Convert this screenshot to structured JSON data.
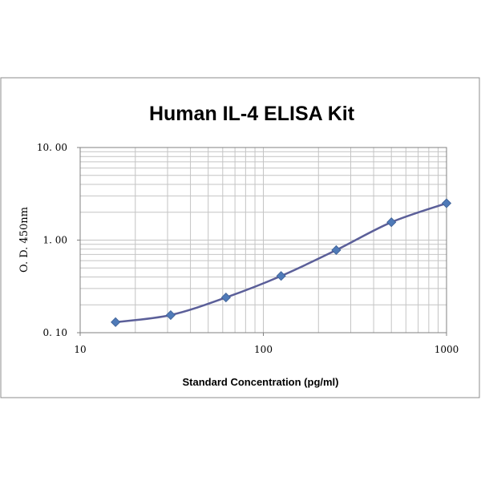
{
  "chart_data": {
    "type": "line",
    "title": "Human IL-4 ELISA Kit",
    "xlabel": "Standard Concentration (pg/ml)",
    "ylabel": "O. D.  450nm",
    "x_scale": "log",
    "y_scale": "log",
    "xlim": [
      10,
      1000
    ],
    "ylim": [
      0.1,
      10
    ],
    "x_ticks": [
      "10",
      "100",
      "1000"
    ],
    "y_ticks": [
      "0. 10",
      "1. 00",
      "10. 00"
    ],
    "grid": true,
    "legend": "none",
    "series_color": "#5b5f99",
    "marker_color": "#4f7ab8",
    "series": [
      {
        "x": [
          15.6,
          31.2,
          62.5,
          125,
          250,
          500,
          1000
        ],
        "y": [
          0.13,
          0.155,
          0.24,
          0.41,
          0.78,
          1.56,
          2.5
        ]
      }
    ]
  }
}
